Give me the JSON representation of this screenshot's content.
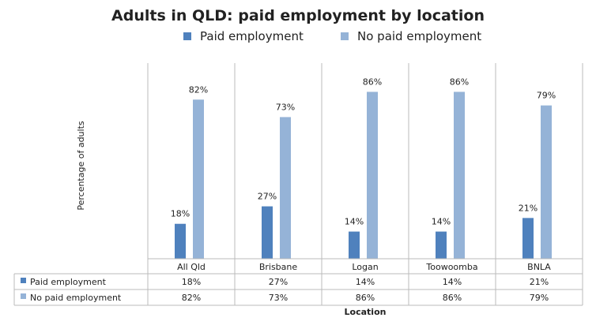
{
  "chart_data": {
    "type": "bar",
    "title": "Adults in QLD: paid employment by location",
    "xlabel": "Location",
    "ylabel": "Percentage of adults",
    "ylim": [
      0,
      100
    ],
    "grid": false,
    "legend_placement": "top",
    "categories": [
      "All Qld",
      "Brisbane",
      "Logan",
      "Toowoomba",
      "BNLA"
    ],
    "series": [
      {
        "name": "Paid employment",
        "color": "#4f81bd",
        "values": [
          18,
          27,
          14,
          14,
          21
        ],
        "labels": [
          "18%",
          "27%",
          "14%",
          "14%",
          "21%"
        ]
      },
      {
        "name": "No paid employment",
        "color": "#95b3d7",
        "values": [
          82,
          73,
          86,
          86,
          79
        ],
        "labels": [
          "82%",
          "73%",
          "86%",
          "86%",
          "79%"
        ]
      }
    ],
    "data_table": true
  }
}
